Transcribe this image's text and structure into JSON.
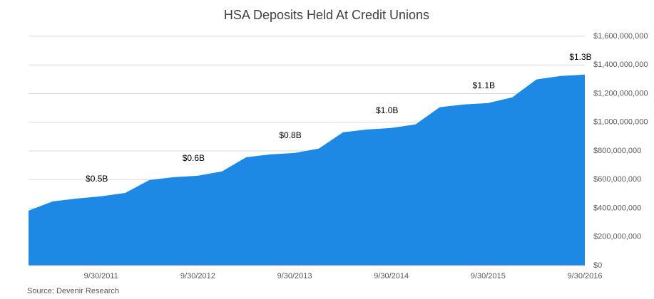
{
  "chart_data": {
    "type": "area",
    "title": "HSA Deposits Held At Credit Unions",
    "categories": [
      null,
      null,
      null,
      "9/30/2011",
      null,
      null,
      null,
      "9/30/2012",
      null,
      null,
      null,
      "9/30/2013",
      null,
      null,
      null,
      "9/30/2014",
      null,
      null,
      null,
      "9/30/2015",
      null,
      null,
      null,
      "9/30/2016"
    ],
    "values": [
      383000000,
      448000000,
      468000000,
      483000000,
      507000000,
      597000000,
      617000000,
      627000000,
      657000000,
      756000000,
      776000000,
      786000000,
      816000000,
      930000000,
      950000000,
      960000000,
      985000000,
      1105000000,
      1124000000,
      1134000000,
      1174000000,
      1299000000,
      1323000000,
      1333000000
    ],
    "value_labels": [
      null,
      null,
      null,
      "$0.5B",
      null,
      null,
      null,
      "$0.6B",
      null,
      null,
      null,
      "$0.8B",
      null,
      null,
      null,
      "$1.0B",
      null,
      null,
      null,
      "$1.1B",
      null,
      null,
      null,
      "$1.3B"
    ],
    "color": "#1e88e5",
    "ylim": [
      0,
      1600000000
    ],
    "yticks": [
      {
        "value": 0,
        "label": "$0"
      },
      {
        "value": 200000000,
        "label": "$200,000,000"
      },
      {
        "value": 400000000,
        "label": "$400,000,000"
      },
      {
        "value": 600000000,
        "label": "$600,000,000"
      },
      {
        "value": 800000000,
        "label": "$800,000,000"
      },
      {
        "value": 1000000000,
        "label": "$1,000,000,000"
      },
      {
        "value": 1200000000,
        "label": "$1,200,000,000"
      },
      {
        "value": 1400000000,
        "label": "$1,400,000,000"
      },
      {
        "value": 1600000000,
        "label": "$1,600,000,000"
      }
    ],
    "grid": true,
    "source": "Source: Devenir Research"
  }
}
